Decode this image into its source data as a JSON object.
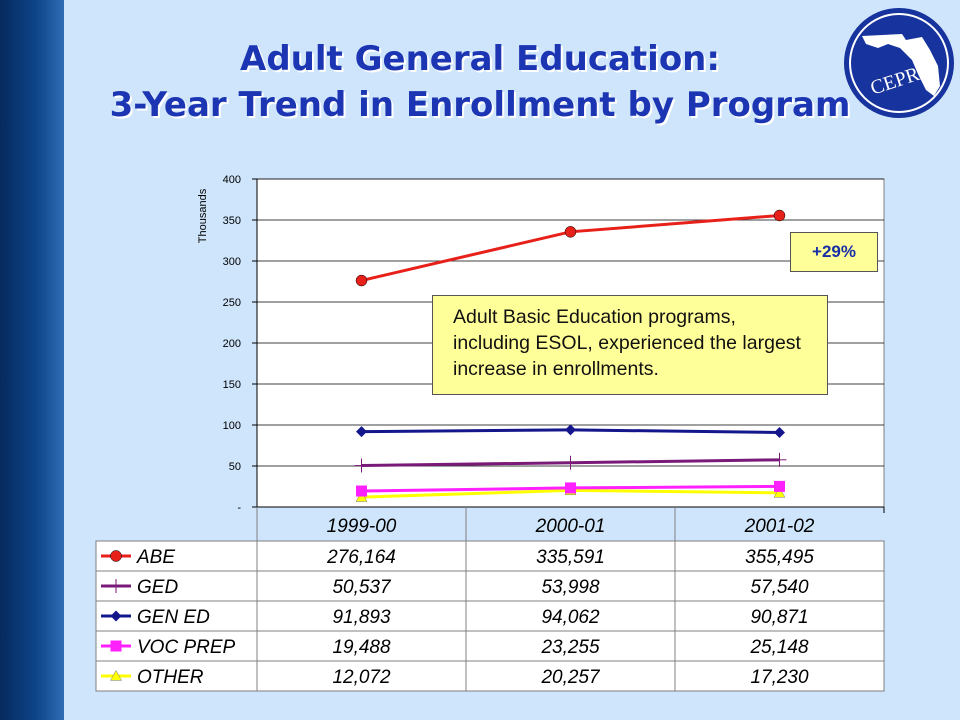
{
  "slide": {
    "title_line1": "Adult General Education:",
    "title_line2": "3-Year Trend in Enrollment by Program",
    "logo_text": "CEPRI"
  },
  "callout": {
    "text": "Adult Basic Education programs, including ESOL, experienced the largest increase in enrollments.",
    "percent_label": "+29%"
  },
  "colors": {
    "background": "#cfe5fb",
    "title": "#1c35b3",
    "callout_fill": "#ffff99"
  },
  "chart_data": {
    "type": "line",
    "ylabel": "Thousands",
    "ylim": [
      0,
      400
    ],
    "yticks": [
      0,
      50,
      100,
      150,
      200,
      250,
      300,
      350,
      400
    ],
    "ytick_labels": [
      "-",
      "50",
      "100",
      "150",
      "200",
      "250",
      "300",
      "350",
      "400"
    ],
    "grid": true,
    "categories": [
      "1999-00",
      "2000-01",
      "2001-02"
    ],
    "legend_placement": "data table below chart",
    "series": [
      {
        "name": "ABE",
        "marker": "circle",
        "color": "#e8201a",
        "values": [
          276164,
          335591,
          355495
        ],
        "labels": [
          "276,164",
          "335,591",
          "355,495"
        ]
      },
      {
        "name": "GED",
        "marker": "plus",
        "color": "#7a1a78",
        "values": [
          50537,
          53998,
          57540
        ],
        "labels": [
          "50,537",
          "53,998",
          "57,540"
        ]
      },
      {
        "name": "GEN ED",
        "marker": "diamond",
        "color": "#14168c",
        "values": [
          91893,
          94062,
          90871
        ],
        "labels": [
          "91,893",
          "94,062",
          "90,871"
        ]
      },
      {
        "name": "VOC PREP",
        "marker": "square",
        "color": "#ff20ff",
        "values": [
          19488,
          23255,
          25148
        ],
        "labels": [
          "19,488",
          "23,255",
          "25,148"
        ]
      },
      {
        "name": "OTHER",
        "marker": "triangle",
        "color": "#ffff00",
        "values": [
          12072,
          20257,
          17230
        ],
        "labels": [
          "12,072",
          "20,257",
          "17,230"
        ]
      }
    ]
  }
}
